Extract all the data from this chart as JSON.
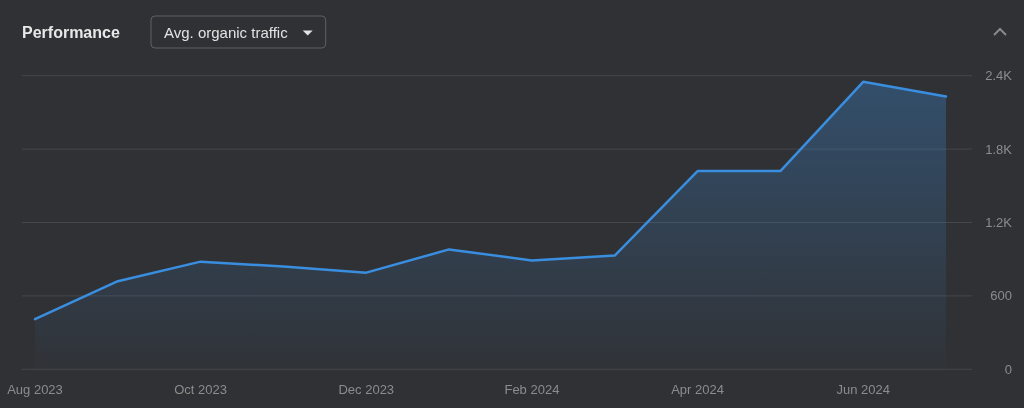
{
  "chart_data": {
    "type": "area",
    "title": "Performance",
    "subtitle": "Avg. organic traffic",
    "categories": [
      "Aug 2023",
      null,
      "Oct 2023",
      null,
      "Dec 2023",
      null,
      "Feb 2024",
      null,
      "Apr 2024",
      null,
      "Jun 2024",
      null
    ],
    "series": [
      {
        "color": "#3a8ee0",
        "values": [
          410,
          720,
          880,
          840,
          790,
          980,
          890,
          930,
          1620,
          1620,
          2350,
          2230
        ]
      }
    ],
    "ylim": [
      0,
      2400
    ],
    "yticks": [
      0,
      600,
      {
        "value": 1200,
        "label": "1.2K"
      },
      {
        "value": 1800,
        "label": "1.8K"
      },
      {
        "value": 2400,
        "label": "2.4K"
      }
    ],
    "grid": "y"
  }
}
